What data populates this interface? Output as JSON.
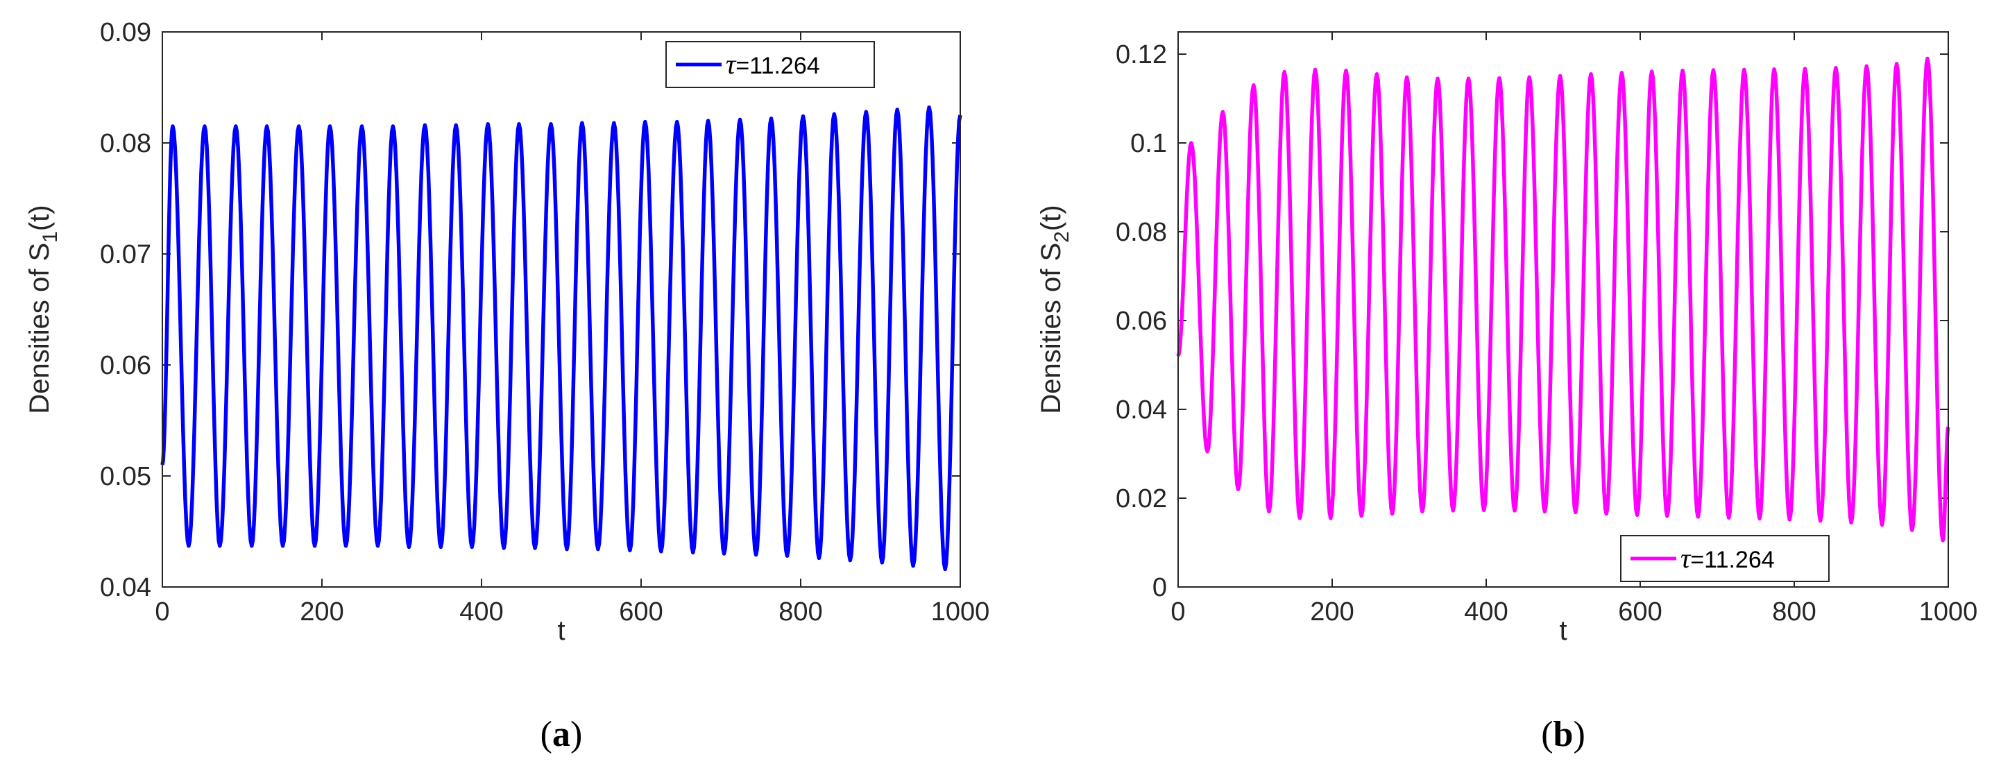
{
  "chart_data": [
    {
      "type": "line",
      "panel_label": "(a)",
      "panel_letter": "a",
      "xlabel": "t",
      "ylabel": "Densities of S",
      "ylabel_sub": "1",
      "ylabel_tail": "(t)",
      "xlim": [
        0,
        1000
      ],
      "ylim": [
        0.04,
        0.09
      ],
      "xticks": [
        0,
        200,
        400,
        600,
        800,
        1000
      ],
      "yticks": [
        0.04,
        0.05,
        0.06,
        0.07,
        0.08,
        0.09
      ],
      "ytick_labels": [
        "0.04",
        "0.05",
        "0.06",
        "0.07",
        "0.08",
        "0.09"
      ],
      "legend": {
        "symbol": "τ",
        "text": "=11.264",
        "position": "top-right"
      },
      "series": [
        {
          "name": "τ=11.264",
          "color": "#0000ff",
          "start_value": 0.051,
          "end_value": 0.0825,
          "period": 39.5,
          "peaks": [
            [
              13,
              0.0815
            ],
            [
              53,
              0.0815
            ],
            [
              92,
              0.0815
            ],
            [
              131,
              0.0815
            ],
            [
              171,
              0.0815
            ],
            [
              210,
              0.0815
            ],
            [
              250,
              0.0815
            ],
            [
              289,
              0.0815
            ],
            [
              329,
              0.0816
            ],
            [
              368,
              0.0816
            ],
            [
              408,
              0.0817
            ],
            [
              447,
              0.0817
            ],
            [
              487,
              0.0817
            ],
            [
              526,
              0.0818
            ],
            [
              566,
              0.0818
            ],
            [
              605,
              0.0819
            ],
            [
              645,
              0.0819
            ],
            [
              684,
              0.082
            ],
            [
              724,
              0.0821
            ],
            [
              763,
              0.0822
            ],
            [
              803,
              0.0824
            ],
            [
              842,
              0.0826
            ],
            [
              882,
              0.0828
            ],
            [
              921,
              0.083
            ],
            [
              961,
              0.0832
            ]
          ],
          "troughs": [
            [
              33,
              0.0437
            ],
            [
              72,
              0.0437
            ],
            [
              112,
              0.0437
            ],
            [
              151,
              0.0437
            ],
            [
              191,
              0.0437
            ],
            [
              230,
              0.0437
            ],
            [
              270,
              0.0437
            ],
            [
              309,
              0.0436
            ],
            [
              349,
              0.0436
            ],
            [
              388,
              0.0436
            ],
            [
              428,
              0.0435
            ],
            [
              467,
              0.0435
            ],
            [
              507,
              0.0434
            ],
            [
              546,
              0.0434
            ],
            [
              586,
              0.0433
            ],
            [
              625,
              0.0432
            ],
            [
              665,
              0.0431
            ],
            [
              704,
              0.043
            ],
            [
              744,
              0.0429
            ],
            [
              783,
              0.0428
            ],
            [
              823,
              0.0426
            ],
            [
              862,
              0.0424
            ],
            [
              902,
              0.0422
            ],
            [
              941,
              0.0419
            ],
            [
              981,
              0.0416
            ]
          ]
        }
      ]
    },
    {
      "type": "line",
      "panel_label": "(b)",
      "panel_letter": "b",
      "xlabel": "t",
      "ylabel": "Densities of S",
      "ylabel_sub": "2",
      "ylabel_tail": "(t)",
      "xlim": [
        0,
        1000
      ],
      "ylim": [
        0,
        0.125
      ],
      "xticks": [
        0,
        200,
        400,
        600,
        800,
        1000
      ],
      "yticks": [
        0,
        0.02,
        0.04,
        0.06,
        0.08,
        0.1,
        0.12
      ],
      "ytick_labels": [
        "0",
        "0.02",
        "0.04",
        "0.06",
        "0.08",
        "0.1",
        "0.12"
      ],
      "legend": {
        "symbol": "τ",
        "text": "=11.264",
        "position": "bottom-right"
      },
      "series": [
        {
          "name": "τ=11.264",
          "color": "#ff00ff",
          "start_value": 0.052,
          "end_value": 0.036,
          "period": 39.5,
          "peaks": [
            [
              17,
              0.1
            ],
            [
              58,
              0.107
            ],
            [
              98,
              0.113
            ],
            [
              138,
              0.116
            ],
            [
              178,
              0.1165
            ],
            [
              218,
              0.1163
            ],
            [
              258,
              0.1155
            ],
            [
              297,
              0.1148
            ],
            [
              337,
              0.1145
            ],
            [
              377,
              0.1145
            ],
            [
              417,
              0.1146
            ],
            [
              456,
              0.1148
            ],
            [
              496,
              0.1151
            ],
            [
              536,
              0.1155
            ],
            [
              576,
              0.1158
            ],
            [
              615,
              0.1161
            ],
            [
              655,
              0.1163
            ],
            [
              695,
              0.1164
            ],
            [
              735,
              0.1165
            ],
            [
              774,
              0.1166
            ],
            [
              814,
              0.1167
            ],
            [
              854,
              0.1169
            ],
            [
              894,
              0.1173
            ],
            [
              933,
              0.1178
            ],
            [
              973,
              0.119
            ]
          ],
          "troughs": [
            [
              38,
              0.0305
            ],
            [
              78,
              0.022
            ],
            [
              118,
              0.017
            ],
            [
              158,
              0.0155
            ],
            [
              198,
              0.0155
            ],
            [
              238,
              0.016
            ],
            [
              278,
              0.0165
            ],
            [
              317,
              0.017
            ],
            [
              357,
              0.0172
            ],
            [
              397,
              0.0173
            ],
            [
              437,
              0.0172
            ],
            [
              476,
              0.017
            ],
            [
              516,
              0.0168
            ],
            [
              556,
              0.0165
            ],
            [
              596,
              0.0162
            ],
            [
              635,
              0.016
            ],
            [
              675,
              0.0158
            ],
            [
              715,
              0.0156
            ],
            [
              755,
              0.0154
            ],
            [
              794,
              0.0152
            ],
            [
              834,
              0.0149
            ],
            [
              874,
              0.0145
            ],
            [
              914,
              0.014
            ],
            [
              953,
              0.0128
            ],
            [
              993,
              0.0105
            ]
          ]
        }
      ]
    }
  ]
}
